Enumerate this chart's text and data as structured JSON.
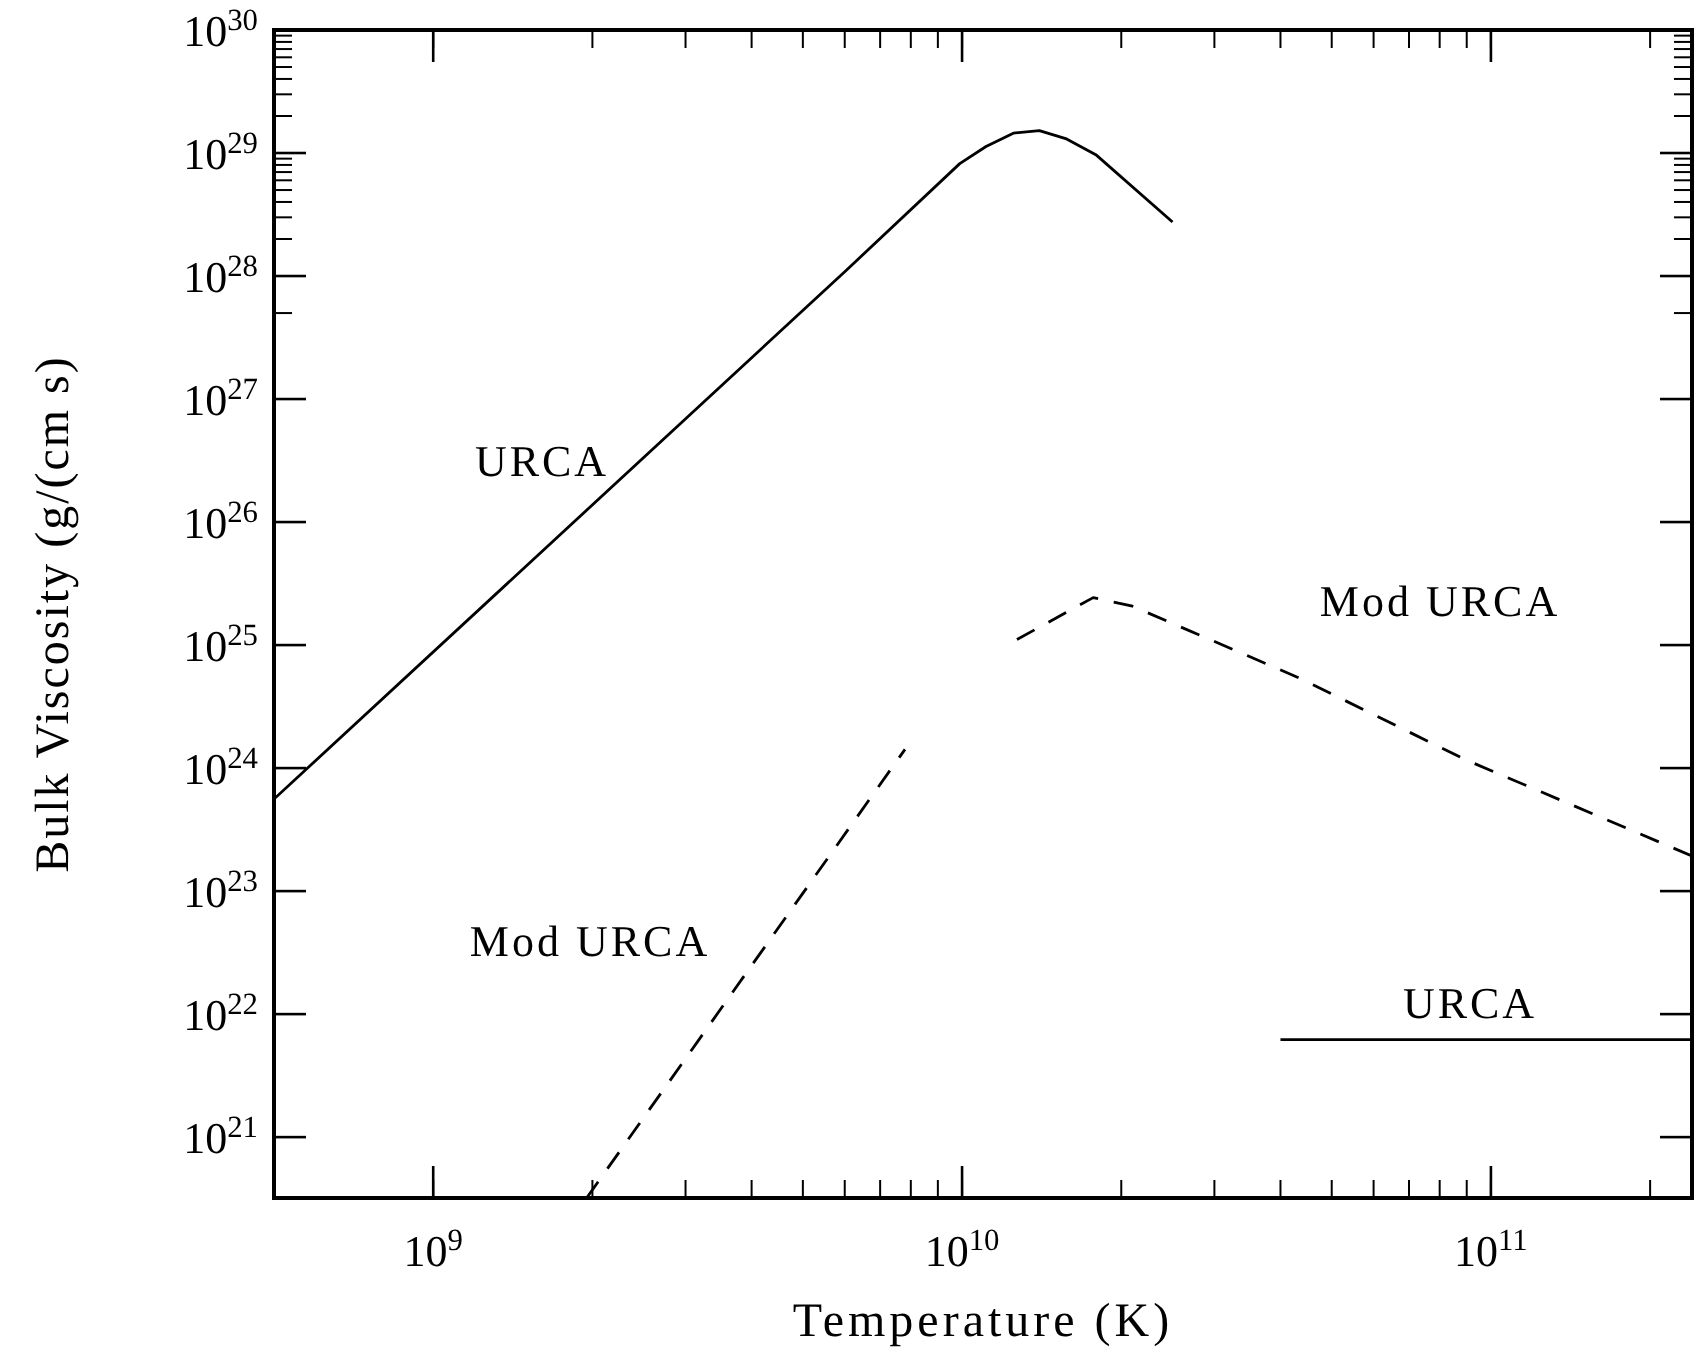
{
  "chart_data": {
    "type": "line",
    "xlabel": "Temperature (K)",
    "ylabel": "Bulk Viscosity (g/(cm s)",
    "log": "xy",
    "xlim": [
      500000000.0,
      240000000000.0
    ],
    "ylim": [
      3.2e+20,
      1e+30
    ],
    "xticks": [
      {
        "value": 1000000000.0,
        "label": "10$^{9}$"
      },
      {
        "value": 10000000000.0,
        "label": "10$^{10}$"
      },
      {
        "value": 100000000000.0,
        "label": "10$^{11}$"
      }
    ],
    "yticks": [
      {
        "value": 1e+21,
        "label": "10$^{21}$"
      },
      {
        "value": 1e+22,
        "label": "10$^{22}$"
      },
      {
        "value": 1e+23,
        "label": "10$^{23}$"
      },
      {
        "value": 1e+24,
        "label": "10$^{24}$"
      },
      {
        "value": 1e+25,
        "label": "10$^{25}$"
      },
      {
        "value": 1e+26,
        "label": "10$^{26}$"
      },
      {
        "value": 1e+27,
        "label": "10$^{27}$"
      },
      {
        "value": 1e+28,
        "label": "10$^{28}$"
      },
      {
        "value": 1e+29,
        "label": "10$^{29}$"
      },
      {
        "value": 1e+30,
        "label": "10$^{30}$"
      }
    ],
    "grid": false,
    "series": [
      {
        "name": "URCA",
        "color": "#000000",
        "line_style": "solid",
        "x": [
          500000000.0,
          6050000000.0,
          9900000000.0,
          11100000000.0,
          12500000000.0,
          14000000000.0,
          15700000000.0,
          17900000000.0,
          25000000000.0
        ],
        "values": [
          5.6e+23,
          1.12e+28,
          8.2e+28,
          1.13e+29,
          1.45e+29,
          1.52e+29,
          1.31e+29,
          9.7e+28,
          2.75e+28
        ]
      },
      {
        "name": "URCA",
        "color": "#000000",
        "line_style": "solid",
        "x": [
          40000000000.0,
          240000000000.0
        ],
        "values": [
          6.2e+21,
          6.2e+21
        ]
      },
      {
        "name": "Mod URCA",
        "color": "#000000",
        "line_style": "dashed",
        "x": [
          1950000000.0,
          7800000000.0
        ],
        "values": [
          3.2e+20,
          1.42e+24
        ]
      },
      {
        "name": "Mod URCA",
        "color": "#000000",
        "line_style": "dashed",
        "x": [
          12700000000.0,
          17700000000.0,
          21000000000.0,
          43400000000.0,
          89500000000.0,
          240000000000.0
        ],
        "values": [
          1.11e+25,
          2.43e+25,
          2.07e+25,
          5.4e+24,
          1.17e+24,
          1.93e+23
        ]
      }
    ]
  }
}
